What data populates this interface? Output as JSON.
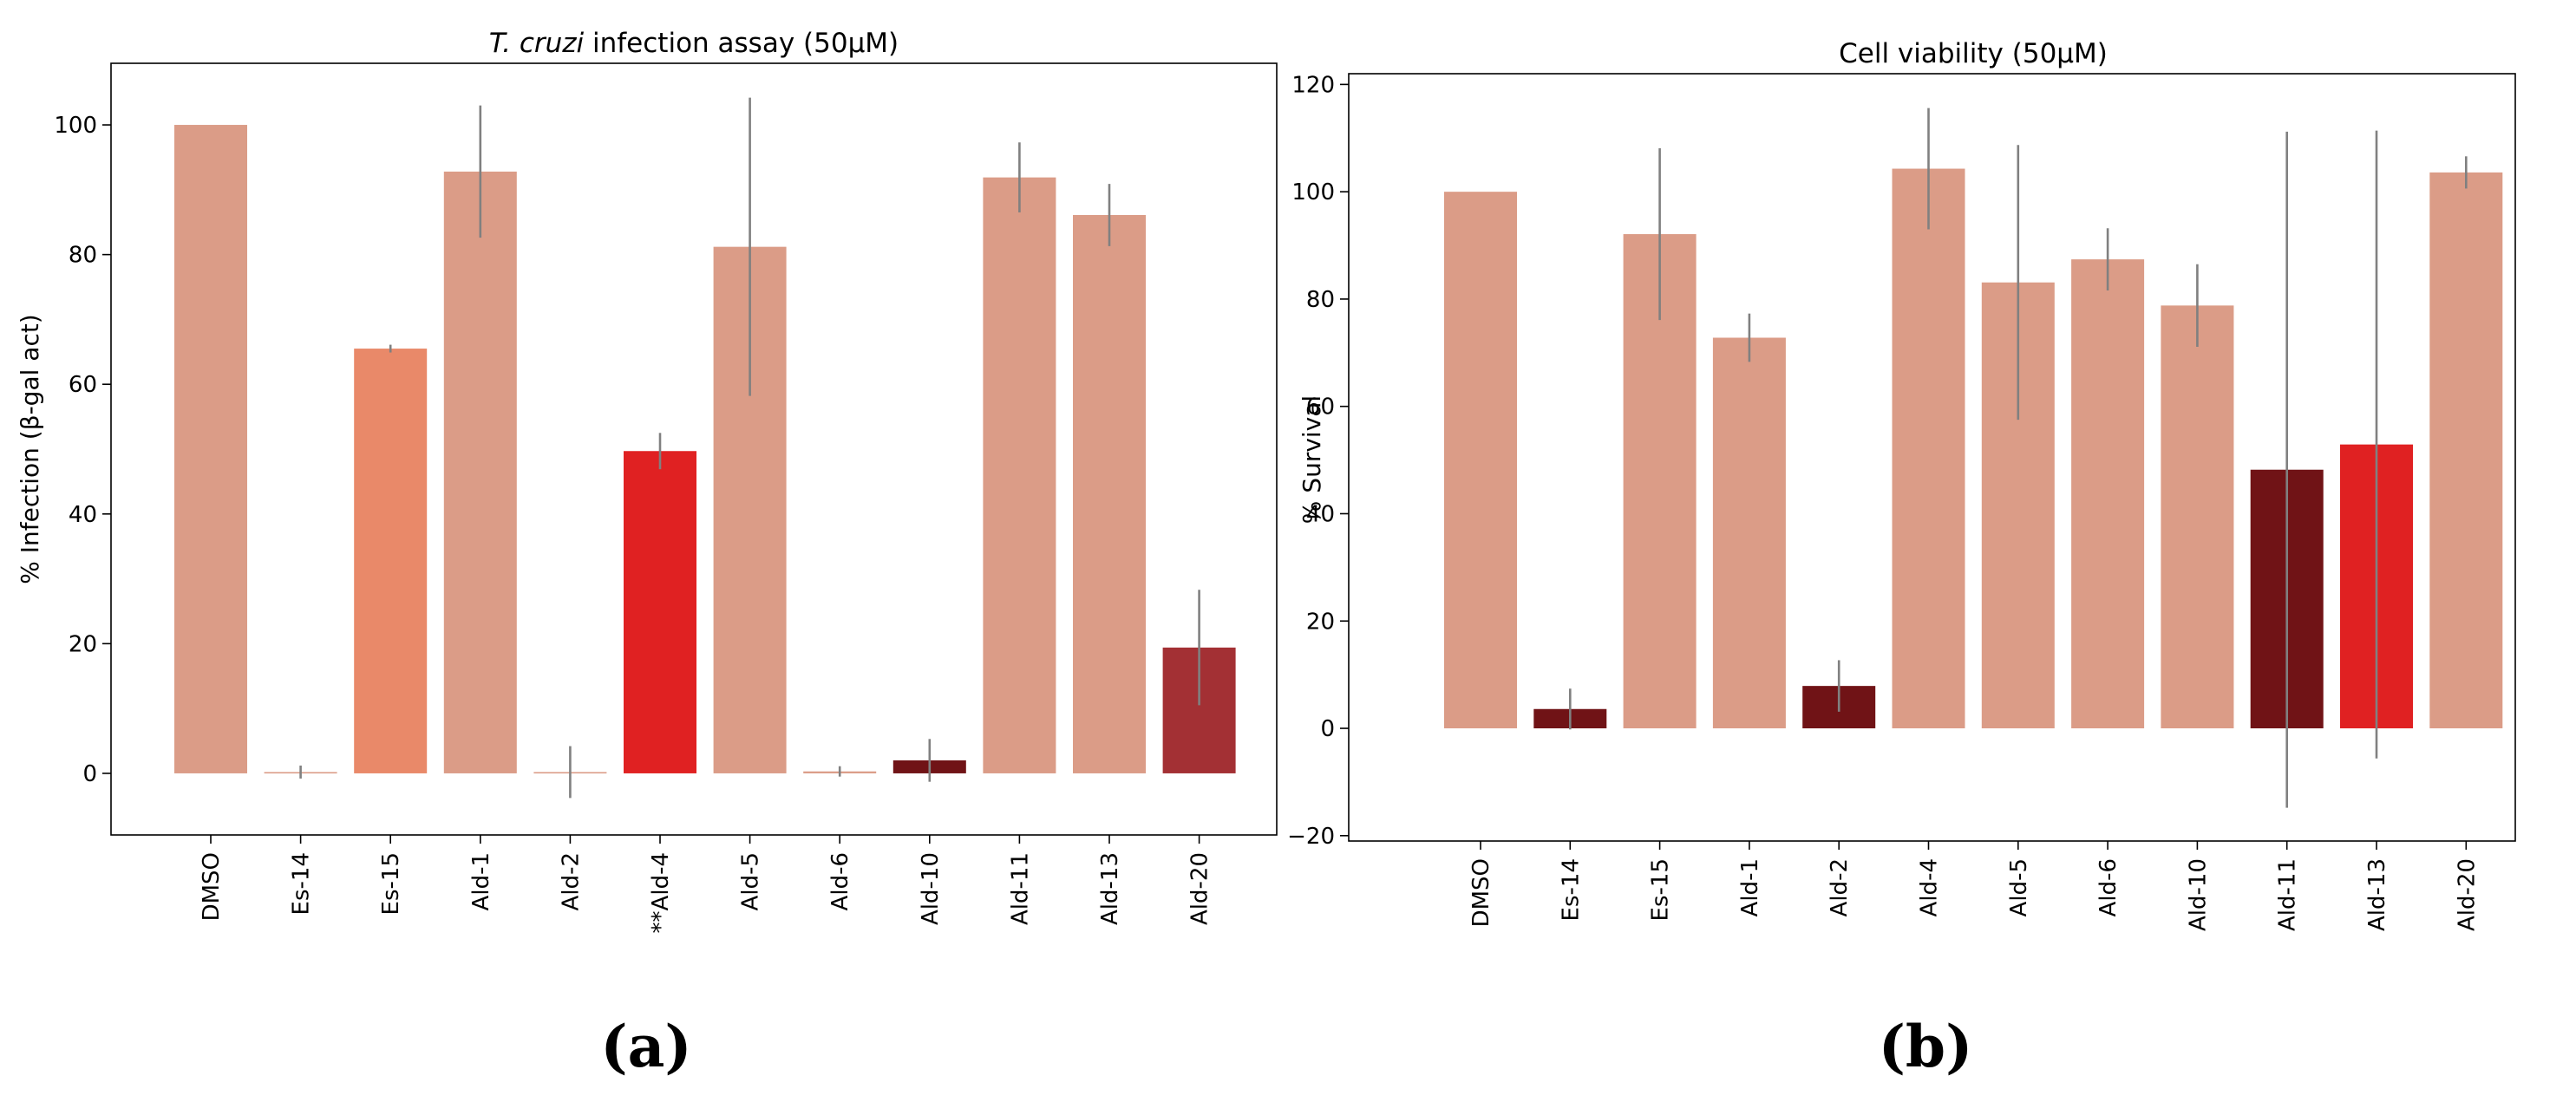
{
  "chart_data": [
    {
      "type": "bar",
      "panel_label": "(a)",
      "title_italic": "T. cruzi",
      "title_rest": " infection assay (50μM)",
      "ylabel": "% Infection (β-gal act)",
      "xlabel": "",
      "ylim": [
        -9.5,
        109.5
      ],
      "yticks": [
        0,
        20,
        40,
        60,
        80,
        100
      ],
      "categories": [
        "DMSO",
        "Es-14",
        "Es-15",
        "Ald-1",
        "Ald-2",
        "**Ald-4",
        "Ald-5",
        "Ald-6",
        "Ald-10",
        "Ald-11",
        "Ald-13",
        "Ald-20"
      ],
      "values": [
        100,
        0.2,
        65.5,
        92.8,
        0.2,
        49.7,
        81.2,
        0.3,
        2.0,
        91.9,
        86.1,
        19.4
      ],
      "errors": [
        0,
        1.0,
        0.6,
        10.2,
        4.0,
        2.8,
        23.0,
        0.8,
        3.3,
        5.4,
        4.8,
        8.9
      ],
      "colors": [
        "#db9c87",
        "#db9c87",
        "#e98969",
        "#db9c87",
        "#db9c87",
        "#e02122",
        "#db9c87",
        "#db9c87",
        "#701316",
        "#db9c87",
        "#db9c87",
        "#a33034"
      ],
      "error_color": "#808080"
    },
    {
      "type": "bar",
      "panel_label": "(b)",
      "title_italic": "",
      "title_rest": "Cell viability (50μM)",
      "ylabel": "% Survival",
      "xlabel": "",
      "ylim": [
        -21,
        122
      ],
      "yticks": [
        -20,
        0,
        20,
        40,
        60,
        80,
        100,
        120
      ],
      "categories": [
        "DMSO",
        "Es-14",
        "Es-15",
        "Ald-1",
        "Ald-2",
        "Ald-4",
        "Ald-5",
        "Ald-6",
        "Ald-10",
        "Ald-11",
        "Ald-13",
        "Ald-20"
      ],
      "values": [
        100,
        3.6,
        92.1,
        72.8,
        7.9,
        104.3,
        83.1,
        87.4,
        78.8,
        48.2,
        52.9,
        103.6
      ],
      "errors": [
        0,
        3.8,
        16.0,
        4.5,
        4.8,
        11.3,
        25.6,
        5.8,
        7.7,
        63.0,
        58.5,
        3.0
      ],
      "colors": [
        "#db9c87",
        "#701316",
        "#db9c87",
        "#db9c87",
        "#701316",
        "#db9c87",
        "#db9c87",
        "#db9c87",
        "#db9c87",
        "#701316",
        "#e02122",
        "#db9c87"
      ],
      "error_color": "#808080"
    }
  ]
}
